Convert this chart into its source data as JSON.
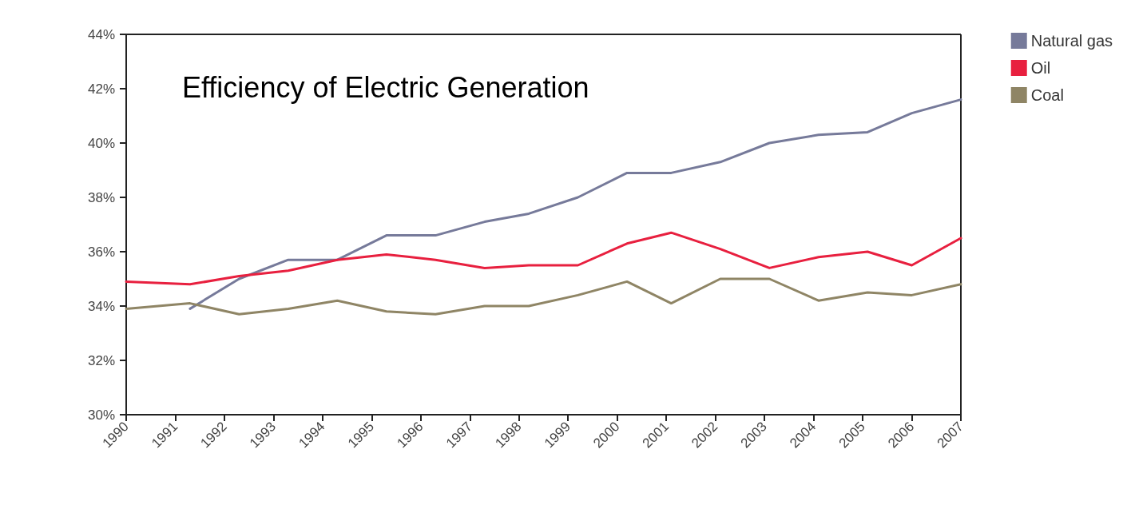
{
  "chart_data": {
    "type": "line",
    "title": "Efficiency of Electric Generation",
    "legend": "top right",
    "grid": false,
    "marker": "none",
    "line_style": "solid",
    "xlim": [
      1990,
      2007
    ],
    "xticks": [
      1990,
      1991,
      1992,
      1993,
      1994,
      1995,
      1996,
      1997,
      1998,
      1999,
      2000,
      2001,
      2002,
      2003,
      2004,
      2005,
      2006,
      2007
    ],
    "ylim": [
      30,
      44
    ],
    "yticks": [
      {
        "value": 30,
        "label": "30%"
      },
      {
        "value": 32,
        "label": "32%"
      },
      {
        "value": 34,
        "label": "34%"
      },
      {
        "value": 36,
        "label": "36%"
      },
      {
        "value": 38,
        "label": "38%"
      },
      {
        "value": 40,
        "label": "40%"
      },
      {
        "value": 42,
        "label": "42%"
      },
      {
        "value": 44,
        "label": "44%"
      }
    ],
    "x": [
      1990,
      1991.3,
      1992.3,
      1993.3,
      1994.3,
      1995.3,
      1996.3,
      1997.3,
      1998.2,
      1999.2,
      2000.2,
      2001.1,
      2002.1,
      2003.1,
      2004.1,
      2005.1,
      2006,
      2007
    ],
    "series": [
      {
        "name": "Natural gas",
        "color": "#767a9a",
        "values": [
          null,
          33.9,
          35.0,
          35.7,
          35.7,
          36.6,
          36.6,
          37.1,
          37.4,
          38.0,
          38.9,
          38.9,
          39.3,
          40.0,
          40.3,
          40.4,
          41.1,
          41.6
        ]
      },
      {
        "name": "Oil",
        "color": "#e8203f",
        "values": [
          34.9,
          34.8,
          35.1,
          35.3,
          35.7,
          35.9,
          35.7,
          35.4,
          35.5,
          35.5,
          36.3,
          36.7,
          36.1,
          35.4,
          35.8,
          36.0,
          35.5,
          36.5
        ]
      },
      {
        "name": "Coal",
        "color": "#8f8565",
        "values": [
          33.9,
          34.1,
          33.7,
          33.9,
          34.2,
          33.8,
          33.7,
          34.0,
          34.0,
          34.4,
          34.9,
          34.1,
          35.0,
          35.0,
          34.2,
          34.5,
          34.4,
          34.8
        ]
      }
    ]
  }
}
